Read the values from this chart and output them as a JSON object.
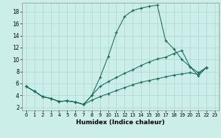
{
  "xlabel": "Humidex (Indice chaleur)",
  "bg_color": "#cceee8",
  "grid_color": "#b0d8d2",
  "line_color": "#1a6b60",
  "xlim": [
    -0.5,
    23.5
  ],
  "ylim": [
    1.5,
    19.5
  ],
  "xticks": [
    0,
    1,
    2,
    3,
    4,
    5,
    6,
    7,
    8,
    9,
    10,
    11,
    12,
    13,
    14,
    15,
    16,
    17,
    18,
    19,
    20,
    21,
    22,
    23
  ],
  "yticks": [
    2,
    4,
    6,
    8,
    10,
    12,
    14,
    16,
    18
  ],
  "line1_x": [
    0,
    1,
    2,
    3,
    4,
    5,
    6,
    7,
    8,
    9,
    10,
    11,
    12,
    13,
    14,
    15,
    16,
    17,
    18,
    19,
    20,
    21,
    22
  ],
  "line1_y": [
    5.5,
    4.7,
    3.8,
    3.5,
    3.0,
    3.1,
    2.9,
    2.5,
    4.0,
    7.0,
    10.5,
    14.5,
    17.2,
    18.2,
    18.6,
    18.9,
    19.1,
    13.2,
    11.8,
    10.0,
    8.8,
    7.3,
    8.7
  ],
  "line2_x": [
    0,
    1,
    2,
    3,
    4,
    5,
    6,
    7,
    8,
    9,
    10,
    11,
    12,
    13,
    14,
    15,
    16,
    17,
    18,
    19,
    20,
    21,
    22
  ],
  "line2_y": [
    5.5,
    4.7,
    3.8,
    3.5,
    3.0,
    3.1,
    2.9,
    2.5,
    4.0,
    5.5,
    6.3,
    7.0,
    7.7,
    8.3,
    9.0,
    9.6,
    10.1,
    10.4,
    11.0,
    11.5,
    8.8,
    7.8,
    8.7
  ],
  "line3_x": [
    0,
    1,
    2,
    3,
    4,
    5,
    6,
    7,
    8,
    9,
    10,
    11,
    12,
    13,
    14,
    15,
    16,
    17,
    18,
    19,
    20,
    21,
    22
  ],
  "line3_y": [
    5.5,
    4.7,
    3.8,
    3.5,
    3.0,
    3.1,
    2.9,
    2.5,
    3.2,
    3.8,
    4.3,
    4.8,
    5.3,
    5.8,
    6.2,
    6.5,
    6.8,
    7.1,
    7.4,
    7.6,
    7.8,
    7.5,
    8.7
  ]
}
